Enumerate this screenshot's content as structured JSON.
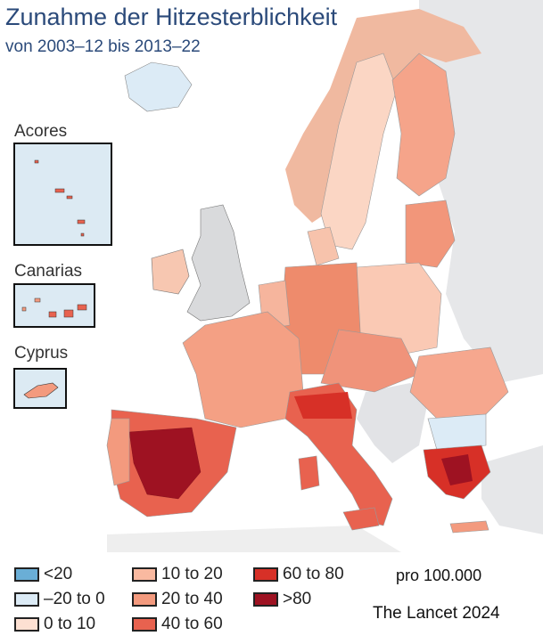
{
  "title": "Zunahme der Hitzesterblichkeit",
  "subtitle": "von 2003–12 bis 2013–22",
  "insets": {
    "acores": "Acores",
    "canarias": "Canarias",
    "cyprus": "Cyprus"
  },
  "legend": [
    {
      "label": "<20",
      "color": "#6aaed6"
    },
    {
      "label": "–20 to 0",
      "color": "#dcebf6"
    },
    {
      "label": "0 to 10",
      "color": "#fde0d2"
    },
    {
      "label": "10 to 20",
      "color": "#f9b9a0"
    },
    {
      "label": "20 to 40",
      "color": "#f39a7e"
    },
    {
      "label": "40 to 60",
      "color": "#e8624f"
    },
    {
      "label": "60 to 80",
      "color": "#d73027"
    },
    {
      "label": ">80",
      "color": "#9e1222"
    }
  ],
  "unit": "pro 100.000",
  "credit": "The Lancet 2024",
  "colors": {
    "sea": "#dceaf3",
    "no_data_land": "#e8e8e8",
    "uk": "#d9dadc",
    "title": "#2b4a7a"
  }
}
